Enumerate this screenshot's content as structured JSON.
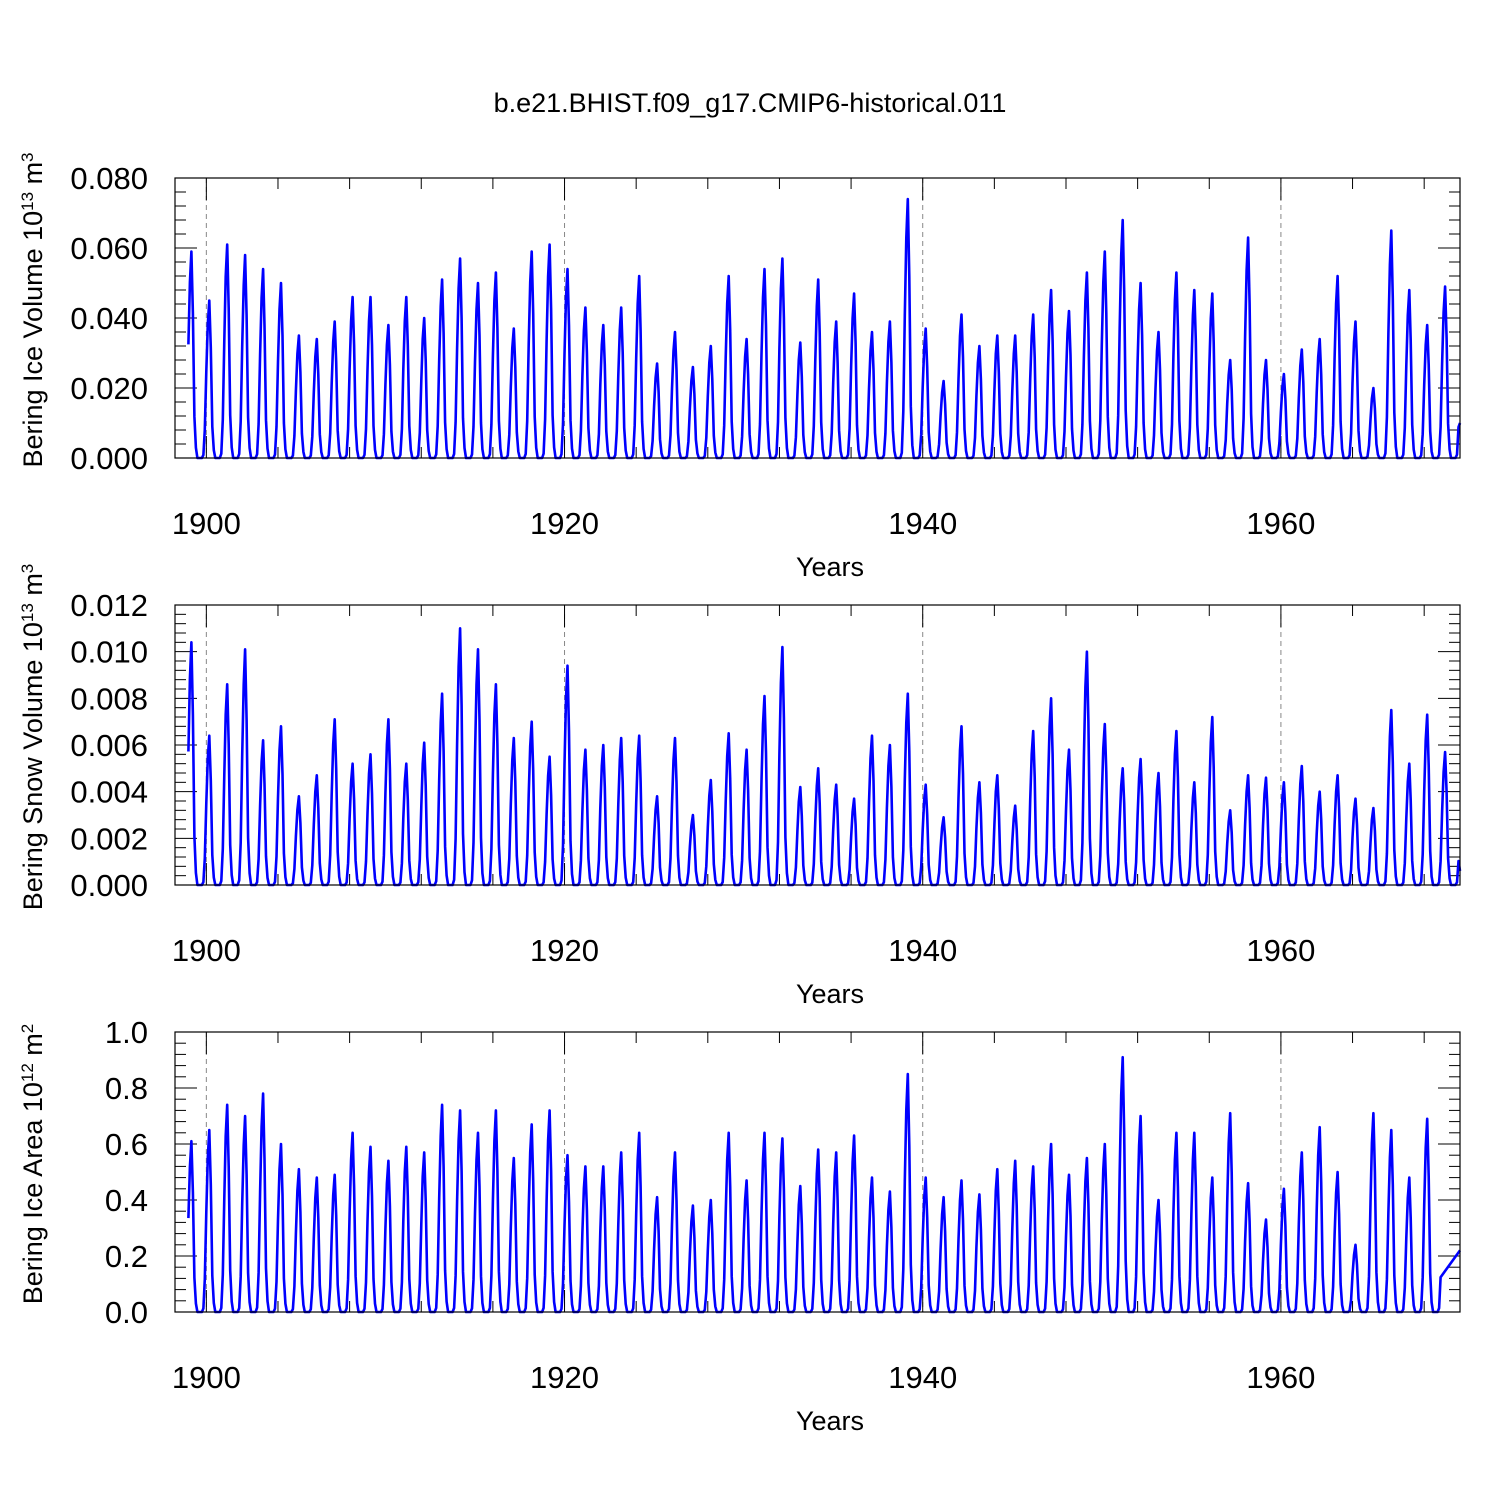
{
  "chart_data": [
    {
      "type": "line",
      "title": "b.e21.BHIST.f09_g17.CMIP6-historical.011",
      "ylabel": {
        "text": "Bering Ice Volume 10",
        "exp": "13",
        "unit": " m",
        "unit_exp": "3"
      },
      "xlabel": "Years",
      "xlim": [
        1898.25,
        1970.0
      ],
      "ylim": [
        0.0,
        0.08
      ],
      "yticks": [
        0.0,
        0.02,
        0.04,
        0.06,
        0.08
      ],
      "ytick_labels": [
        "0.000",
        "0.020",
        "0.040",
        "0.060",
        "0.080"
      ],
      "xticks": [
        1900,
        1920,
        1940,
        1960
      ],
      "xtick_labels": [
        "1900",
        "1920",
        "1940",
        "1960"
      ],
      "reference_lines_x": [
        1900,
        1920,
        1940,
        1960
      ],
      "line_color": "#0000ff",
      "series": [
        {
          "name": "Bering Ice Volume",
          "start_year": 1899.0,
          "points_per_year": 12,
          "winter_peaks": [
            0.059,
            0.045,
            0.061,
            0.058,
            0.054,
            0.05,
            0.035,
            0.034,
            0.039,
            0.046,
            0.046,
            0.038,
            0.046,
            0.04,
            0.051,
            0.057,
            0.05,
            0.053,
            0.037,
            0.059,
            0.061,
            0.054,
            0.043,
            0.038,
            0.043,
            0.052,
            0.027,
            0.036,
            0.026,
            0.032,
            0.052,
            0.034,
            0.054,
            0.057,
            0.033,
            0.051,
            0.039,
            0.047,
            0.036,
            0.039,
            0.074,
            0.037,
            0.022,
            0.041,
            0.032,
            0.035,
            0.035,
            0.041,
            0.048,
            0.042,
            0.053,
            0.059,
            0.068,
            0.05,
            0.036,
            0.053,
            0.048,
            0.047,
            0.028,
            0.063,
            0.028,
            0.024,
            0.031,
            0.034,
            0.052,
            0.039,
            0.02,
            0.065,
            0.048,
            0.038,
            0.049
          ],
          "end_value": 0.01
        }
      ]
    },
    {
      "type": "line",
      "ylabel": {
        "text": "Bering Snow Volume 10",
        "exp": "13",
        "unit": " m",
        "unit_exp": "3"
      },
      "xlabel": "Years",
      "xlim": [
        1898.25,
        1970.0
      ],
      "ylim": [
        0.0,
        0.012
      ],
      "yticks": [
        0.0,
        0.002,
        0.004,
        0.006,
        0.008,
        0.01,
        0.012
      ],
      "ytick_labels": [
        "0.000",
        "0.002",
        "0.004",
        "0.006",
        "0.008",
        "0.010",
        "0.012"
      ],
      "xticks": [
        1900,
        1920,
        1940,
        1960
      ],
      "xtick_labels": [
        "1900",
        "1920",
        "1940",
        "1960"
      ],
      "reference_lines_x": [
        1900,
        1920,
        1940,
        1960
      ],
      "line_color": "#0000ff",
      "series": [
        {
          "name": "Bering Snow Volume",
          "start_year": 1899.0,
          "points_per_year": 12,
          "winter_peaks": [
            0.0104,
            0.0064,
            0.0086,
            0.0101,
            0.0062,
            0.0068,
            0.0038,
            0.0047,
            0.0071,
            0.0052,
            0.0056,
            0.0071,
            0.0052,
            0.0061,
            0.0082,
            0.011,
            0.0101,
            0.0086,
            0.0063,
            0.007,
            0.0055,
            0.0094,
            0.0058,
            0.006,
            0.0063,
            0.0064,
            0.0038,
            0.0063,
            0.003,
            0.0045,
            0.0065,
            0.0058,
            0.0081,
            0.0102,
            0.0042,
            0.005,
            0.0043,
            0.0037,
            0.0064,
            0.006,
            0.0082,
            0.0043,
            0.0029,
            0.0068,
            0.0044,
            0.0047,
            0.0034,
            0.0066,
            0.008,
            0.0058,
            0.01,
            0.0069,
            0.005,
            0.0054,
            0.0048,
            0.0066,
            0.0044,
            0.0072,
            0.0032,
            0.0047,
            0.0046,
            0.0044,
            0.0051,
            0.004,
            0.0047,
            0.0037,
            0.0033,
            0.0075,
            0.0052,
            0.0073,
            0.0057
          ],
          "end_value": 0.0006
        }
      ]
    },
    {
      "type": "line",
      "ylabel": {
        "text": "Bering Ice Area 10",
        "exp": "12",
        "unit": " m",
        "unit_exp": "2"
      },
      "xlabel": "Years",
      "xlim": [
        1898.25,
        1970.0
      ],
      "ylim": [
        0.0,
        1.0
      ],
      "yticks": [
        0.0,
        0.2,
        0.4,
        0.6,
        0.8,
        1.0
      ],
      "ytick_labels": [
        "0.0",
        "0.2",
        "0.4",
        "0.6",
        "0.8",
        "1.0"
      ],
      "xticks": [
        1900,
        1920,
        1940,
        1960
      ],
      "xtick_labels": [
        "1900",
        "1920",
        "1940",
        "1960"
      ],
      "reference_lines_x": [
        1900,
        1920,
        1940,
        1960
      ],
      "line_color": "#0000ff",
      "series": [
        {
          "name": "Bering Ice Area",
          "start_year": 1899.0,
          "points_per_year": 12,
          "winter_peaks": [
            0.61,
            0.65,
            0.74,
            0.7,
            0.78,
            0.6,
            0.51,
            0.48,
            0.49,
            0.64,
            0.59,
            0.54,
            0.59,
            0.57,
            0.74,
            0.72,
            0.64,
            0.72,
            0.55,
            0.67,
            0.72,
            0.56,
            0.52,
            0.52,
            0.57,
            0.64,
            0.41,
            0.57,
            0.38,
            0.4,
            0.64,
            0.47,
            0.64,
            0.62,
            0.45,
            0.58,
            0.57,
            0.63,
            0.48,
            0.43,
            0.85,
            0.48,
            0.41,
            0.47,
            0.42,
            0.51,
            0.54,
            0.52,
            0.6,
            0.49,
            0.55,
            0.6,
            0.91,
            0.7,
            0.4,
            0.64,
            0.64,
            0.48,
            0.71,
            0.46,
            0.33,
            0.44,
            0.57,
            0.66,
            0.5,
            0.24,
            0.71,
            0.65,
            0.48,
            0.69
          ],
          "end_value": 0.22
        }
      ]
    }
  ]
}
